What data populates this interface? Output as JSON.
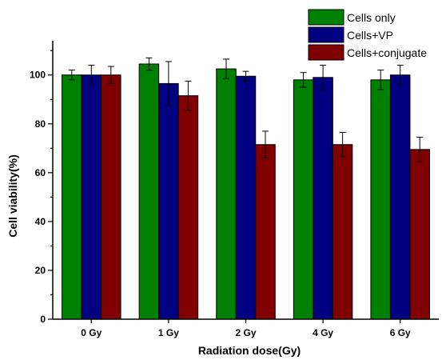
{
  "chart_data": {
    "type": "bar",
    "categories": [
      "0 Gy",
      "1 Gy",
      "2 Gy",
      "4 Gy",
      "6 Gy"
    ],
    "series": [
      {
        "name": "Cells only",
        "color": "#008000",
        "values": [
          100,
          104.5,
          102.5,
          98,
          98
        ],
        "errors": [
          2,
          2.5,
          4,
          3,
          4
        ]
      },
      {
        "name": "Cells+VP",
        "color": "#000080",
        "values": [
          100,
          96.5,
          99.5,
          99,
          100
        ],
        "errors": [
          4,
          9,
          2,
          5,
          4
        ]
      },
      {
        "name": "Cells+conjugate",
        "color": "#800000",
        "values": [
          100,
          91.5,
          71.5,
          71.5,
          69.5
        ],
        "errors": [
          3.5,
          6,
          5.5,
          5,
          5
        ]
      }
    ],
    "xlabel": "Radiation dose(Gy)",
    "ylabel": "Cell viability(%)",
    "ylim": [
      0,
      114
    ],
    "yticks": [
      0,
      20,
      40,
      60,
      80,
      100
    ],
    "grid": false,
    "legend_position": "top-right"
  }
}
